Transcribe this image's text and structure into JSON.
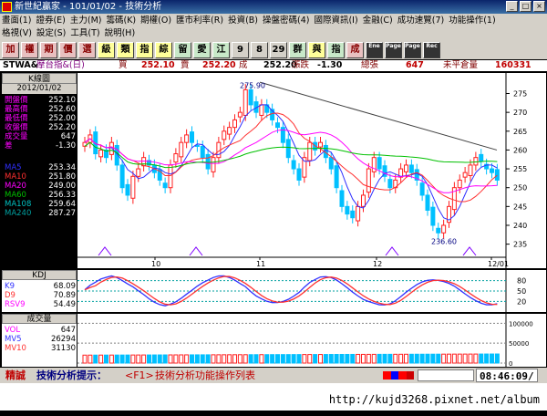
{
  "window": {
    "title": "新世紀贏家 - 101/01/02 - 技術分析"
  },
  "menu": {
    "row1": [
      "畫面(1)",
      "證券(E)",
      "主力(M)",
      "籌碼(K)",
      "期權(O)",
      "匯市利率(R)",
      "投資(B)",
      "操盤密碼(4)",
      "國際資訊(I)",
      "金融(C)",
      "成功速覽(7)",
      "功能操作(1)"
    ],
    "row2": [
      "格視(V)",
      "設定(S)",
      "工具(T)",
      "說明(H)"
    ]
  },
  "toolbar": {
    "buttons": [
      "加",
      "權",
      "期",
      "價",
      "選",
      "級",
      "類",
      "指",
      "綜",
      "留",
      "愛",
      "江",
      "9",
      "8",
      "29",
      "群",
      "與",
      "指",
      "成",
      "Ene",
      "Page",
      "Page",
      "Rec"
    ]
  },
  "quote": {
    "symbol": "STWA&",
    "name": "摩台指&(日)",
    "bid_label": "買",
    "bid": "252.10",
    "ask_label": "賣",
    "ask": "252.20",
    "last_label": "成",
    "last": "252.20",
    "change_label": "漲跌",
    "change": "-1.30",
    "volume_label": "總張",
    "volume": "647",
    "oi_label": "未平倉量",
    "oi": "160331"
  },
  "left_panel": {
    "header": "K線圖",
    "date": "2012/01/02",
    "fields": [
      {
        "label": "開盤價",
        "value": "252.10",
        "color": "#ff00ff"
      },
      {
        "label": "最高價",
        "value": "252.60",
        "color": "#ff00ff"
      },
      {
        "label": "最低價",
        "value": "252.00",
        "color": "#ff00ff"
      },
      {
        "label": "收盤價",
        "value": "252.20",
        "color": "#ff00ff"
      },
      {
        "label": "成交量",
        "value": "647",
        "color": "#ff00ff"
      },
      {
        "label": "差",
        "value": "-1.30",
        "color": "#ff00ff"
      }
    ],
    "ma": [
      {
        "label": "MA5",
        "value": "253.34",
        "color": "#3030ff"
      },
      {
        "label": "MA10",
        "value": "251.80",
        "color": "#ff3030"
      },
      {
        "label": "MA20",
        "value": "249.00",
        "color": "#ff00ff"
      },
      {
        "label": "MA60",
        "value": "256.33",
        "color": "#00c000"
      },
      {
        "label": "MA108",
        "value": "259.64",
        "color": "#00c0c0"
      },
      {
        "label": "MA240",
        "value": "287.27",
        "color": "#00a0a0"
      }
    ]
  },
  "price_chart": {
    "y_ticks": [
      "275",
      "270",
      "265",
      "260",
      "255",
      "250",
      "245",
      "240",
      "235"
    ],
    "x_ticks": [
      "10",
      "11",
      "12",
      "12/01"
    ],
    "high_label": "275.90",
    "low_label": "236.60"
  },
  "kdj": {
    "header": "KDJ",
    "fields": [
      {
        "label": "K9",
        "value": "68.09",
        "color": "#3030ff"
      },
      {
        "label": "D9",
        "value": "70.89",
        "color": "#ff3030"
      },
      {
        "label": "RSV9",
        "value": "54.49",
        "color": "#ff00ff"
      }
    ],
    "y_ticks": [
      "80",
      "50",
      "20"
    ]
  },
  "volume": {
    "header": "成交量",
    "fields": [
      {
        "label": "VOL",
        "value": "647",
        "color": "#ff00ff"
      },
      {
        "label": "MV5",
        "value": "26294",
        "color": "#3030ff"
      },
      {
        "label": "MV10",
        "value": "31130",
        "color": "#ff3030"
      }
    ],
    "y_ticks": [
      "100000",
      "50000",
      "0"
    ]
  },
  "status": {
    "label": "精誠",
    "hint_label": "技術分析提示：",
    "hint_key": "<F1>",
    "hint_text": "技術分析功能操作列表",
    "time": "08:46:09/"
  },
  "watermark": "http://kujd3268.pixnet.net/album",
  "colors": {
    "up": "#ff2020",
    "down": "#00c0ff",
    "ma5": "#3030ff",
    "ma10": "#ff3030",
    "ma20": "#ff00ff",
    "ma60": "#00c000",
    "ma240": "#404040"
  }
}
